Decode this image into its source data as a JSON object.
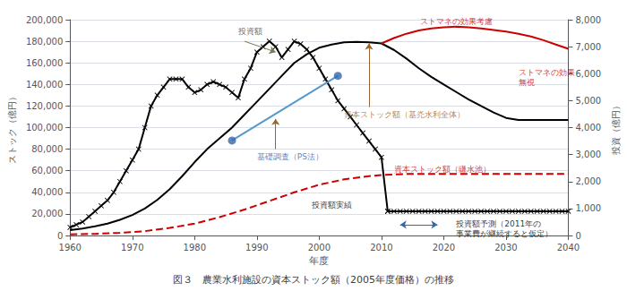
{
  "chart_data": {
    "type": "line",
    "title": "図３　農業水利施設の資本ストック額（2005年度価格）の推移",
    "xlabel": "年度",
    "ylabel": "ストック（億円）",
    "y2label": "投資（億円）",
    "xlim": [
      1960,
      2040
    ],
    "xticks": [
      1960,
      1970,
      1980,
      1990,
      2000,
      2010,
      2020,
      2030,
      2040
    ],
    "ylim": [
      0,
      200000
    ],
    "yticks": [
      0,
      {
        "value": 20000,
        "label": "20,000"
      },
      {
        "value": 40000,
        "label": "40,000"
      },
      {
        "value": 60000,
        "label": "60,000"
      },
      {
        "value": 80000,
        "label": "80,000"
      },
      {
        "value": 100000,
        "label": "100,000"
      },
      {
        "value": 120000,
        "label": "120,000"
      },
      {
        "value": 140000,
        "label": "140,000"
      },
      {
        "value": 160000,
        "label": "160,000"
      },
      {
        "value": 180000,
        "label": "180,000"
      },
      {
        "value": 200000,
        "label": "200,000"
      }
    ],
    "y2lim": [
      0,
      8000
    ],
    "y2ticks": [
      0,
      {
        "value": 1000,
        "label": "1,000"
      },
      {
        "value": 2000,
        "label": "2,000"
      },
      {
        "value": 3000,
        "label": "3,000"
      },
      {
        "value": 4000,
        "label": "4,000"
      },
      {
        "value": 5000,
        "label": "5,000"
      },
      {
        "value": 6000,
        "label": "6,000"
      },
      {
        "value": 7000,
        "label": "7,000"
      },
      {
        "value": 8000,
        "label": "8,000"
      }
    ],
    "grid": true,
    "series": [
      {
        "type": "line",
        "axis": "y2",
        "color": "#000000",
        "marker": "x",
        "line_style": "solid",
        "x": [
          1960,
          1961,
          1962,
          1963,
          1964,
          1965,
          1966,
          1967,
          1968,
          1969,
          1970,
          1971,
          1972,
          1973,
          1974,
          1975,
          1976,
          1977,
          1978,
          1979,
          1980,
          1981,
          1982,
          1983,
          1984,
          1985,
          1986,
          1987,
          1988,
          1989,
          1990,
          1991,
          1992,
          1993,
          1994,
          1995,
          1996,
          1997,
          1998,
          1999,
          2000,
          2001,
          2002,
          2003,
          2004,
          2005,
          2006,
          2007,
          2008,
          2009,
          2010,
          2011
        ],
        "values": [
          300,
          400,
          500,
          700,
          900,
          1100,
          1300,
          1600,
          2000,
          2400,
          2800,
          3200,
          4000,
          4800,
          5200,
          5500,
          5800,
          5800,
          5800,
          5500,
          5300,
          5400,
          5600,
          5700,
          5600,
          5500,
          5300,
          5100,
          5800,
          6200,
          6800,
          7000,
          7200,
          7000,
          6600,
          6900,
          7200,
          7100,
          6900,
          6600,
          6200,
          5800,
          5400,
          5000,
          4700,
          4400,
          4100,
          3800,
          3500,
          3200,
          2900,
          900
        ]
      },
      {
        "type": "line",
        "axis": "y2",
        "color": "#000000",
        "marker": "x",
        "line_style": "solid",
        "x": [
          2011,
          2012,
          2013,
          2014,
          2015,
          2016,
          2017,
          2018,
          2019,
          2020,
          2021,
          2022,
          2023,
          2024,
          2025,
          2026,
          2027,
          2028,
          2029,
          2030,
          2031,
          2032,
          2033,
          2034,
          2035,
          2036,
          2037,
          2038,
          2039,
          2040
        ],
        "values": [
          900,
          900,
          900,
          900,
          900,
          900,
          900,
          900,
          900,
          900,
          900,
          900,
          900,
          900,
          900,
          900,
          900,
          900,
          900,
          900,
          900,
          900,
          900,
          900,
          900,
          900,
          900,
          900,
          900,
          900
        ]
      },
      {
        "type": "line",
        "axis": "y",
        "color": "#cc0000",
        "marker": "none",
        "line_style": "dashed",
        "x": [
          1960,
          1964,
          1968,
          1972,
          1976,
          1980,
          1984,
          1988,
          1992,
          1996,
          2000,
          2004,
          2008,
          2010,
          2012,
          2014,
          2016,
          2018,
          2020,
          2022,
          2024,
          2026,
          2028,
          2030,
          2032,
          2034,
          2036,
          2038,
          2040
        ],
        "values": [
          1000,
          1500,
          2500,
          4000,
          7000,
          11000,
          17000,
          24000,
          32000,
          40000,
          47000,
          52000,
          55000,
          56000,
          56500,
          57000,
          57000,
          57000,
          57000,
          57000,
          57000,
          57000,
          57000,
          57000,
          57000,
          57000,
          57000,
          57000,
          57000
        ]
      },
      {
        "type": "line",
        "axis": "y",
        "color": "#000000",
        "marker": "none",
        "line_style": "solid",
        "x": [
          1960,
          1962,
          1964,
          1966,
          1968,
          1970,
          1972,
          1974,
          1976,
          1978,
          1980,
          1982,
          1984,
          1986,
          1988,
          1990,
          1992,
          1994,
          1996,
          1998,
          2000,
          2002,
          2004,
          2006,
          2008,
          2010,
          2012,
          2014,
          2016,
          2018,
          2020,
          2022,
          2024,
          2026,
          2028,
          2030,
          2032,
          2034,
          2036,
          2038,
          2040
        ],
        "values": [
          5000,
          6500,
          8500,
          11000,
          14500,
          19000,
          25000,
          33000,
          43000,
          55000,
          68000,
          80000,
          90000,
          100000,
          112000,
          124000,
          136000,
          148000,
          160000,
          168000,
          174000,
          177000,
          179000,
          179500,
          179000,
          178000,
          172000,
          164000,
          155000,
          147000,
          140000,
          133000,
          126000,
          120000,
          114000,
          109000,
          107000,
          107000,
          107000,
          107000,
          107000
        ]
      },
      {
        "type": "line",
        "axis": "y",
        "color": "#cc0000",
        "marker": "none",
        "line_style": "solid",
        "x": [
          2010,
          2012,
          2014,
          2016,
          2018,
          2020,
          2022,
          2024,
          2026,
          2028,
          2030,
          2032,
          2034,
          2036,
          2038,
          2040
        ],
        "values": [
          178000,
          183000,
          187000,
          190000,
          192000,
          193000,
          193500,
          193000,
          192000,
          190500,
          189000,
          187000,
          184500,
          181000,
          177000,
          173000
        ]
      },
      {
        "type": "line",
        "axis": "y",
        "color": "#5599cc",
        "marker": "none",
        "line_style": "solid",
        "x": [
          1986,
          2003
        ],
        "values": [
          88000,
          148000
        ]
      },
      {
        "type": "scatter",
        "axis": "y",
        "color": "#3366aa",
        "marker": "circle",
        "x": [
          1986,
          2003
        ],
        "values": [
          88000,
          148000
        ]
      }
    ],
    "annotations": [
      {
        "text": "投資額",
        "x": 1989,
        "y": 185000,
        "color": "#444444"
      },
      {
        "text": "基礎調査（PS法）",
        "x": 1990,
        "y": 78000,
        "color": "#3366aa"
      },
      {
        "text": "資本ストック額（基灮水利全体）",
        "x": 2004,
        "y": 117000,
        "color": "#996633"
      },
      {
        "text": "ストマネの効果考慮",
        "x": 2022,
        "y": 194000,
        "color": "#cc0000"
      },
      {
        "text": "ストマネの効果\n無視",
        "x": 2032,
        "y": 156000,
        "color": "#cc0000"
      },
      {
        "text": "資本ストック額（豏水池）",
        "x": 2012,
        "y": 66000,
        "color": "#cc0000"
      },
      {
        "text": "投資額実績",
        "x": 2002,
        "y": 24000,
        "color": "#000000"
      },
      {
        "text": "投資額予測（2011年の\n事業費が継続すると仮定）",
        "x": 2022,
        "y": 15000,
        "color": "#000000"
      }
    ],
    "arrows": [
      {
        "from": [
          1988,
          180000
        ],
        "to": [
          1993,
          170000
        ],
        "color": "#777755",
        "marker": "->"
      },
      {
        "from": [
          1993,
          80000
        ],
        "to": [
          1993,
          108000
        ],
        "color": "#996633",
        "marker": "->"
      },
      {
        "from": [
          2008,
          119000
        ],
        "to": [
          2008,
          178000
        ],
        "color": "#996633",
        "marker": "->"
      },
      {
        "from": [
          2013,
          10000
        ],
        "to": [
          2019,
          10000
        ],
        "color": "#3366aa",
        "marker": "<->"
      }
    ]
  }
}
